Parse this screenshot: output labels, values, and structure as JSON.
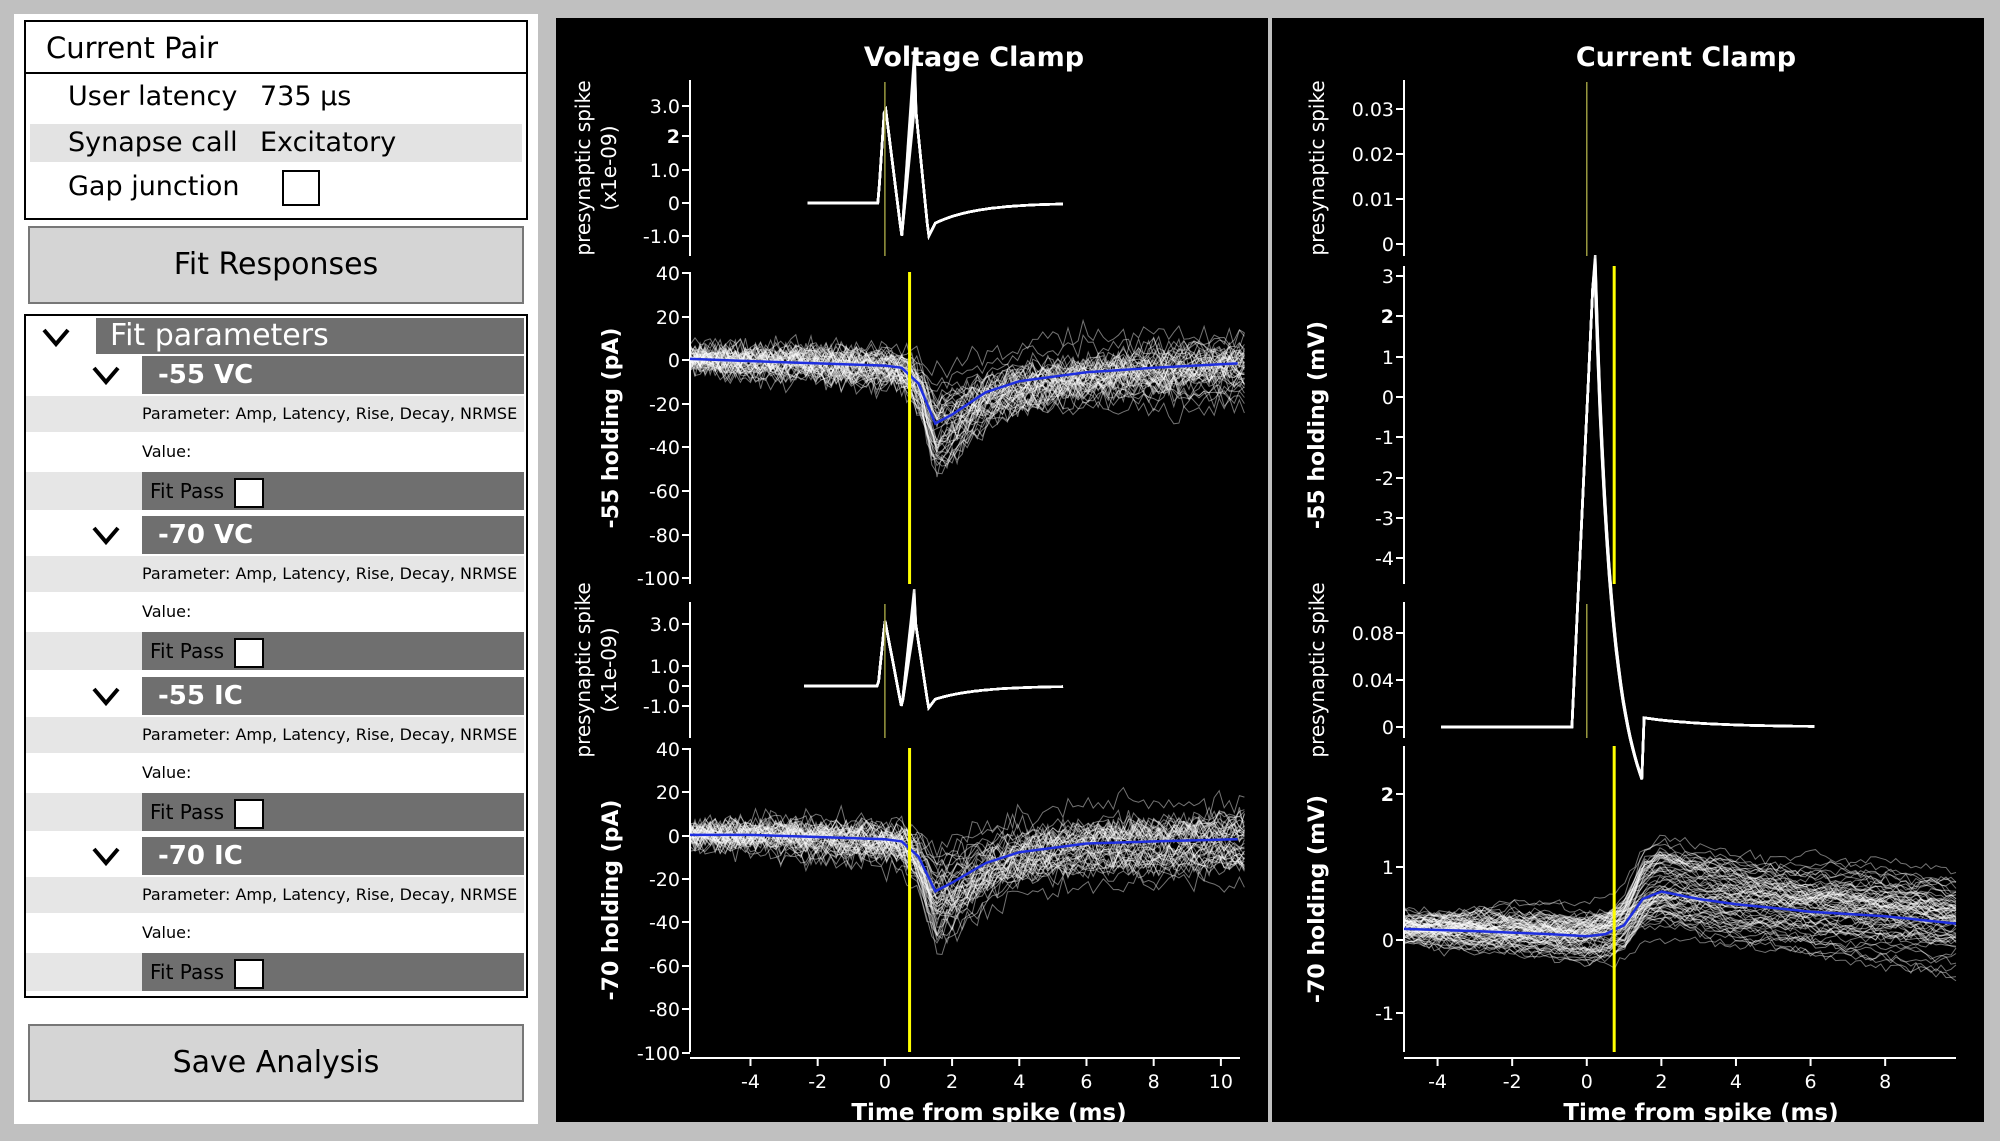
{
  "left_panel": {
    "current_pair": {
      "title": "Current Pair",
      "user_latency_label": "User latency",
      "user_latency_value": "735 μs",
      "synapse_call_label": "Synapse call",
      "synapse_call_value": "Excitatory",
      "gap_junction_label": "Gap junction",
      "gap_junction_checked": false
    },
    "fit_button": "Fit Responses",
    "fit_parameters": {
      "header": "Fit parameters",
      "groups": [
        {
          "title": "-55 VC",
          "parameter": "Parameter: Amp, Latency, Rise, Decay, NRMSE",
          "value": "Value:",
          "fit_pass": "Fit Pass"
        },
        {
          "title": "-70 VC",
          "parameter": "Parameter: Amp, Latency, Rise, Decay, NRMSE",
          "value": "Value:",
          "fit_pass": "Fit Pass"
        },
        {
          "title": "-55 IC",
          "parameter": "Parameter: Amp, Latency, Rise, Decay, NRMSE",
          "value": "Value:",
          "fit_pass": "Fit Pass"
        },
        {
          "title": "-70 IC",
          "parameter": "Parameter: Amp, Latency, Rise, Decay, NRMSE",
          "value": "Value:",
          "fit_pass": "Fit Pass"
        }
      ]
    },
    "save_button": "Save Analysis"
  },
  "colors": {
    "background": "#000000",
    "traces": "#ffffff",
    "mean_trace": "#1f2fe0",
    "latency_line": "#ffff00"
  },
  "chart_data": [
    {
      "type": "line",
      "panel": "Voltage Clamp",
      "title": "Voltage Clamp",
      "ylabel": "presynaptic spike\n(x1e-09)",
      "yticks": [
        "3.0",
        "2",
        "1.0",
        "0",
        "-1.0"
      ],
      "xlim": [
        -5.8,
        10.7
      ]
    },
    {
      "type": "line",
      "panel": "Voltage Clamp",
      "ylabel": "-55 holding (pA)",
      "yticks": [
        "40",
        "20",
        "0",
        "-20",
        "-40",
        "-60",
        "-80",
        "-100"
      ],
      "ylim": [
        -100,
        40
      ],
      "mean_trace": {
        "x": [
          -5.8,
          -4,
          -2,
          0,
          0.5,
          1.0,
          1.5,
          2.0,
          3.0,
          4.0,
          6.0,
          8.0,
          10.5
        ],
        "y": [
          1,
          0,
          -1,
          -2,
          -3,
          -10,
          -28,
          -24,
          -14,
          -9,
          -5,
          -3,
          -1
        ]
      },
      "latency_ms": 0.735,
      "xlim": [
        -5.8,
        10.7
      ]
    },
    {
      "type": "line",
      "panel": "Voltage Clamp",
      "ylabel": "presynaptic spike\n(x1e-09)",
      "yticks": [
        "3.0",
        "1.0",
        "0",
        "-1.0"
      ],
      "xlim": [
        -5.8,
        10.7
      ]
    },
    {
      "type": "line",
      "panel": "Voltage Clamp",
      "ylabel": "-70 holding (pA)",
      "yticks": [
        "40",
        "20",
        "0",
        "-20",
        "-40",
        "-60",
        "-80",
        "-100"
      ],
      "ylim": [
        -100,
        40
      ],
      "mean_trace": {
        "x": [
          -5.8,
          -4,
          -2,
          0,
          0.5,
          1.0,
          1.5,
          2.0,
          3.0,
          4.0,
          6.0,
          8.0,
          10.5
        ],
        "y": [
          0,
          0,
          -1,
          -2,
          -3,
          -10,
          -26,
          -22,
          -13,
          -8,
          -4,
          -3,
          -2
        ]
      },
      "latency_ms": 0.735,
      "xlabel": "Time from spike (ms)",
      "xticks": [
        "-4",
        "-2",
        "0",
        "2",
        "4",
        "6",
        "8",
        "10"
      ],
      "xlim": [
        -5.8,
        10.7
      ]
    },
    {
      "type": "line",
      "panel": "Current Clamp",
      "title": "Current Clamp",
      "ylabel": "presynaptic spike",
      "yticks": [
        "0.03",
        "0.02",
        "0.01",
        "0"
      ],
      "ylim": [
        0,
        0.035
      ]
    },
    {
      "type": "line",
      "panel": "Current Clamp",
      "ylabel": "-55 holding (mV)",
      "yticks": [
        "3",
        "2",
        "1",
        "0",
        "-1",
        "-2",
        "-3",
        "-4"
      ],
      "ylim": [
        -4.3,
        3.2
      ],
      "latency_ms": 0.735
    },
    {
      "type": "line",
      "panel": "Current Clamp",
      "ylabel": "presynaptic spike",
      "yticks": [
        "0.08",
        "0.04",
        "0"
      ],
      "ylim": [
        0,
        0.1
      ]
    },
    {
      "type": "line",
      "panel": "Current Clamp",
      "ylabel": "-70 holding (mV)",
      "yticks": [
        "2",
        "1",
        "0",
        "-1"
      ],
      "ylim": [
        -1.6,
        2.5
      ],
      "mean_trace": {
        "x": [
          -4.9,
          -3,
          -1,
          0,
          0.5,
          1.0,
          1.5,
          2.0,
          3.0,
          4.0,
          6.0,
          8.0,
          9.9
        ],
        "y": [
          0.05,
          0.02,
          -0.02,
          -0.05,
          -0.02,
          0.1,
          0.45,
          0.55,
          0.45,
          0.38,
          0.28,
          0.22,
          0.12
        ]
      },
      "latency_ms": 0.735,
      "xlabel": "Time from spike (ms)",
      "xticks": [
        "-4",
        "-2",
        "0",
        "2",
        "4",
        "6",
        "8"
      ],
      "xlim": [
        -4.9,
        9.9
      ]
    }
  ]
}
